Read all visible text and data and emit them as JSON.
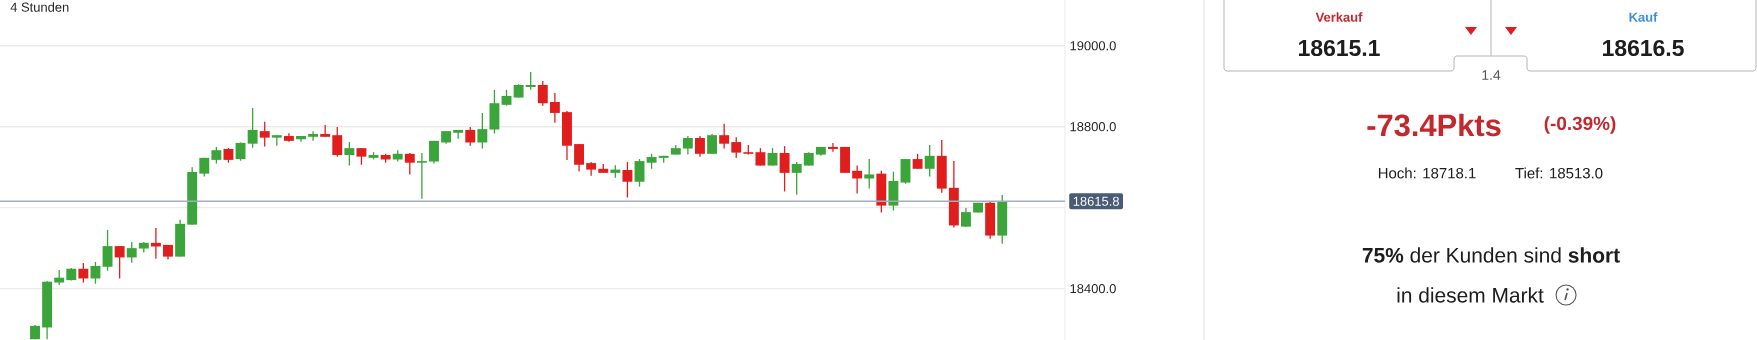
{
  "chart_data": {
    "type": "candlestick",
    "title": "4 Stunden",
    "categories": [
      null,
      null,
      null,
      null,
      null,
      null,
      null,
      null,
      null,
      null,
      null,
      null,
      null,
      null,
      null,
      null,
      null,
      null,
      null,
      null,
      null,
      null,
      null,
      null,
      null,
      null,
      null,
      null,
      null,
      null,
      null,
      null,
      null,
      null,
      null,
      null,
      null,
      null,
      null,
      null,
      null,
      null,
      null,
      null,
      null,
      null,
      null,
      null,
      null,
      null,
      null,
      null,
      null,
      null,
      null,
      null,
      null,
      null,
      null,
      null,
      null,
      null,
      null,
      null,
      null,
      null,
      null,
      null,
      null,
      null,
      null,
      null,
      null,
      null,
      null,
      null,
      null,
      null,
      null,
      null,
      null
    ],
    "ohlc": [
      [
        18275,
        18310,
        18275,
        18308
      ],
      [
        18304,
        18419,
        18275,
        18417
      ],
      [
        18415,
        18446,
        18409,
        18427
      ],
      [
        18421,
        18451,
        18420,
        18449
      ],
      [
        18449,
        18463,
        18415,
        18425
      ],
      [
        18425,
        18466,
        18412,
        18456
      ],
      [
        18454,
        18545,
        18444,
        18505
      ],
      [
        18505,
        18505,
        18425,
        18477
      ],
      [
        18477,
        18515,
        18464,
        18500
      ],
      [
        18499,
        18515,
        18489,
        18513
      ],
      [
        18513,
        18550,
        18474,
        18504
      ],
      [
        18508,
        18508,
        18472,
        18479
      ],
      [
        18479,
        18570,
        18479,
        18560
      ],
      [
        18558,
        18700,
        18558,
        18688
      ],
      [
        18684,
        18723,
        18677,
        18723
      ],
      [
        18718,
        18750,
        18709,
        18742
      ],
      [
        18745,
        18747,
        18711,
        18718
      ],
      [
        18720,
        18761,
        18716,
        18760
      ],
      [
        18758,
        18846,
        18748,
        18792
      ],
      [
        18789,
        18812,
        18751,
        18773
      ],
      [
        18773,
        18779,
        18753,
        18779
      ],
      [
        18777,
        18784,
        18763,
        18765
      ],
      [
        18769,
        18777,
        18763,
        18777
      ],
      [
        18775,
        18789,
        18765,
        18782
      ],
      [
        18782,
        18804,
        18775,
        18775
      ],
      [
        18779,
        18799,
        18726,
        18730
      ],
      [
        18730,
        18762,
        18704,
        18747
      ],
      [
        18747,
        18747,
        18706,
        18726
      ],
      [
        18723,
        18737,
        18719,
        18730
      ],
      [
        18730,
        18733,
        18711,
        18719
      ],
      [
        18719,
        18742,
        18714,
        18733
      ],
      [
        18733,
        18735,
        18682,
        18711
      ],
      [
        18711,
        18735,
        18622,
        18715
      ],
      [
        18714,
        18765,
        18709,
        18765
      ],
      [
        18761,
        18789,
        18758,
        18789
      ],
      [
        18785,
        18792,
        18770,
        18792
      ],
      [
        18792,
        18799,
        18753,
        18761
      ],
      [
        18761,
        18834,
        18746,
        18794
      ],
      [
        18793,
        18891,
        18783,
        18858
      ],
      [
        18854,
        18891,
        18852,
        18876
      ],
      [
        18872,
        18905,
        18872,
        18903
      ],
      [
        18898,
        18935,
        18891,
        18903
      ],
      [
        18903,
        18913,
        18852,
        18858
      ],
      [
        18861,
        18883,
        18810,
        18834
      ],
      [
        18836,
        18839,
        18718,
        18753
      ],
      [
        18757,
        18757,
        18689,
        18706
      ],
      [
        18710,
        18713,
        18679,
        18694
      ],
      [
        18696,
        18708,
        18686,
        18686
      ],
      [
        18686,
        18705,
        18674,
        18694
      ],
      [
        18693,
        18713,
        18625,
        18664
      ],
      [
        18664,
        18720,
        18652,
        18715
      ],
      [
        18711,
        18733,
        18696,
        18725
      ],
      [
        18723,
        18728,
        18711,
        18728
      ],
      [
        18731,
        18755,
        18731,
        18747
      ],
      [
        18746,
        18777,
        18731,
        18772
      ],
      [
        18772,
        18777,
        18726,
        18733
      ],
      [
        18733,
        18782,
        18733,
        18779
      ],
      [
        18779,
        18807,
        18746,
        18758
      ],
      [
        18762,
        18774,
        18723,
        18736
      ],
      [
        18737,
        18755,
        18731,
        18733
      ],
      [
        18737,
        18747,
        18704,
        18704
      ],
      [
        18704,
        18747,
        18704,
        18735
      ],
      [
        18735,
        18752,
        18640,
        18686
      ],
      [
        18686,
        18713,
        18632,
        18708
      ],
      [
        18704,
        18737,
        18704,
        18735
      ],
      [
        18731,
        18750,
        18728,
        18750
      ],
      [
        18750,
        18760,
        18738,
        18745
      ],
      [
        18750,
        18750,
        18686,
        18686
      ],
      [
        18691,
        18704,
        18635,
        18672
      ],
      [
        18672,
        18720,
        18647,
        18682
      ],
      [
        18684,
        18691,
        18588,
        18605
      ],
      [
        18605,
        18689,
        18593,
        18666
      ],
      [
        18662,
        18720,
        18659,
        18720
      ],
      [
        18720,
        18733,
        18696,
        18696
      ],
      [
        18696,
        18755,
        18677,
        18728
      ],
      [
        18728,
        18767,
        18637,
        18647
      ],
      [
        18649,
        18715,
        18551,
        18556
      ],
      [
        18553,
        18599,
        18553,
        18589
      ],
      [
        18588,
        18612,
        18588,
        18612
      ],
      [
        18612,
        18615,
        18523,
        18531
      ],
      [
        18531,
        18631,
        18511,
        18616
      ]
    ],
    "colors": [
      "#3ba53b",
      "#3ba53b",
      "#3ba53b",
      "#3ba53b",
      "#e01e1e",
      "#3ba53b",
      "#3ba53b",
      "#e01e1e",
      "#3ba53b",
      "#3ba53b",
      "#e01e1e",
      "#e01e1e",
      "#3ba53b",
      "#3ba53b",
      "#3ba53b",
      "#3ba53b",
      "#e01e1e",
      "#3ba53b",
      "#3ba53b",
      "#e01e1e",
      "#3ba53b",
      "#e01e1e",
      "#3ba53b",
      "#3ba53b",
      "#e01e1e",
      "#e01e1e",
      "#3ba53b",
      "#e01e1e",
      "#3ba53b",
      "#e01e1e",
      "#3ba53b",
      "#e01e1e",
      "#3ba53b",
      "#3ba53b",
      "#3ba53b",
      "#3ba53b",
      "#e01e1e",
      "#3ba53b",
      "#3ba53b",
      "#3ba53b",
      "#3ba53b",
      "#3ba53b",
      "#e01e1e",
      "#e01e1e",
      "#e01e1e",
      "#e01e1e",
      "#e01e1e",
      "#e01e1e",
      "#3ba53b",
      "#e01e1e",
      "#3ba53b",
      "#3ba53b",
      "#3ba53b",
      "#3ba53b",
      "#3ba53b",
      "#e01e1e",
      "#3ba53b",
      "#e01e1e",
      "#e01e1e",
      "#e01e1e",
      "#e01e1e",
      "#3ba53b",
      "#e01e1e",
      "#3ba53b",
      "#3ba53b",
      "#3ba53b",
      "#e01e1e",
      "#e01e1e",
      "#e01e1e",
      "#3ba53b",
      "#e01e1e",
      "#3ba53b",
      "#3ba53b",
      "#e01e1e",
      "#3ba53b",
      "#e01e1e",
      "#e01e1e",
      "#3ba53b",
      "#3ba53b",
      "#e01e1e",
      "#3ba53b"
    ],
    "ylim": [
      18273,
      19113
    ],
    "yticks": [
      {
        "value": 18400,
        "label": "18400.0"
      },
      {
        "value": 18600,
        "label": null
      },
      {
        "value": 18800,
        "label": "18800.0"
      },
      {
        "value": 19000,
        "label": "19000.0"
      }
    ],
    "grid": "y",
    "ref_lines": [
      {
        "axis": "y",
        "value": 18615.8,
        "label": "18615.8",
        "color": "#a3adbb"
      }
    ],
    "annotations": [
      "Verkauf",
      "18615.1",
      "Kauf",
      "18616.5",
      "1.4",
      "-73.4Pkts",
      "(-0.39%)",
      "Hoch: 18718.1",
      "Tief: 18513.0",
      "**75%** der Kunden sind **short**",
      "in diesem Markt"
    ]
  }
}
